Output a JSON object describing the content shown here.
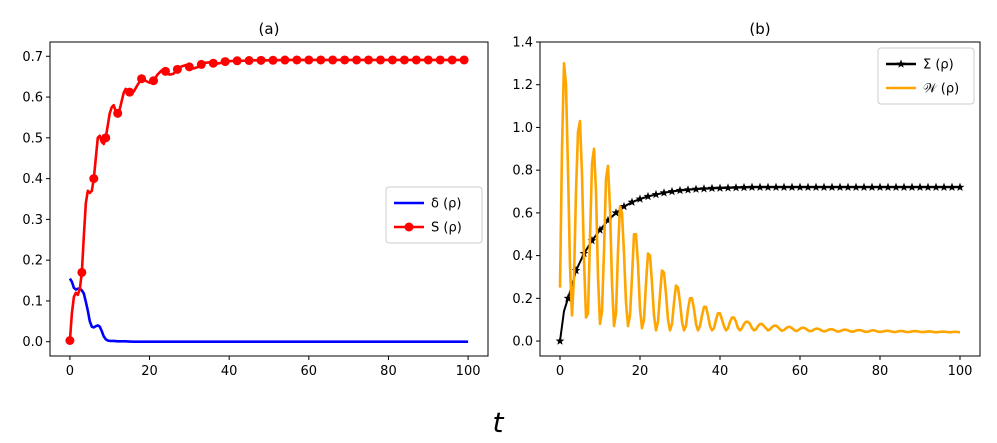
{
  "figure": {
    "xlabel": "t"
  },
  "chart_data": [
    {
      "id": "a",
      "type": "line",
      "title": "(a)",
      "xlim": [
        -5,
        105
      ],
      "ylim": [
        -0.035,
        0.735
      ],
      "xticks": [
        0,
        20,
        40,
        60,
        80,
        100
      ],
      "yticks": [
        0.0,
        0.1,
        0.2,
        0.3,
        0.4,
        0.5,
        0.6,
        0.7
      ],
      "ytick_labels": [
        "0.0",
        "0.1",
        "0.2",
        "0.3",
        "0.4",
        "0.5",
        "0.6",
        "0.7"
      ],
      "legend_position": "center-right",
      "series": [
        {
          "name": "δ (ρ)",
          "color": "#0000ff",
          "marker": "none",
          "x": [
            0,
            0.5,
            1,
            1.5,
            2,
            2.5,
            3,
            3.5,
            4,
            4.5,
            5,
            5.5,
            6,
            6.5,
            7,
            7.5,
            8,
            8.5,
            9,
            9.5,
            10,
            10.5,
            11,
            12,
            14,
            16,
            20,
            30,
            40,
            60,
            80,
            100
          ],
          "y": [
            0.155,
            0.147,
            0.132,
            0.128,
            0.13,
            0.13,
            0.126,
            0.118,
            0.098,
            0.076,
            0.05,
            0.037,
            0.035,
            0.038,
            0.04,
            0.037,
            0.026,
            0.013,
            0.006,
            0.003,
            0.002,
            0.002,
            0.002,
            0.001,
            0.001,
            0.0,
            0.0,
            0.0,
            0.0,
            0.0,
            0.0,
            0.0
          ]
        },
        {
          "name": "S (ρ)",
          "color": "#ff0000",
          "marker": "circle",
          "x": [
            0,
            0.5,
            1,
            1.5,
            2,
            2.5,
            3,
            3.5,
            4,
            4.5,
            5,
            5.5,
            6,
            6.5,
            7,
            7.5,
            8,
            8.5,
            9,
            9.5,
            10,
            10.5,
            11,
            11.5,
            12,
            12.5,
            13,
            13.5,
            14,
            15,
            16,
            17,
            18,
            19,
            20,
            21,
            22,
            23,
            24,
            25,
            26,
            27,
            28,
            29,
            30,
            31,
            32,
            33,
            34,
            35,
            36,
            37,
            38,
            39,
            40,
            42,
            44,
            46,
            48,
            50,
            55,
            60,
            65,
            70,
            75,
            80,
            85,
            90,
            95,
            100
          ],
          "y": [
            0.003,
            0.07,
            0.11,
            0.12,
            0.115,
            0.13,
            0.17,
            0.26,
            0.34,
            0.37,
            0.365,
            0.37,
            0.4,
            0.45,
            0.5,
            0.505,
            0.49,
            0.485,
            0.5,
            0.53,
            0.56,
            0.575,
            0.58,
            0.565,
            0.56,
            0.57,
            0.59,
            0.61,
            0.62,
            0.612,
            0.613,
            0.63,
            0.645,
            0.64,
            0.635,
            0.64,
            0.655,
            0.665,
            0.663,
            0.655,
            0.657,
            0.668,
            0.675,
            0.678,
            0.674,
            0.67,
            0.673,
            0.68,
            0.684,
            0.685,
            0.683,
            0.682,
            0.684,
            0.687,
            0.688,
            0.689,
            0.689,
            0.69,
            0.69,
            0.69,
            0.691,
            0.691,
            0.691,
            0.691,
            0.691,
            0.691,
            0.691,
            0.691,
            0.691,
            0.691
          ],
          "markers_x": [
            0,
            3,
            6,
            9,
            12,
            15,
            18,
            21,
            24,
            27,
            30,
            33,
            36,
            39,
            42,
            45,
            48,
            51,
            54,
            57,
            60,
            63,
            66,
            69,
            72,
            75,
            78,
            81,
            84,
            87,
            90,
            93,
            96,
            99
          ]
        }
      ]
    },
    {
      "id": "b",
      "type": "line",
      "title": "(b)",
      "xlim": [
        -5,
        105
      ],
      "ylim": [
        -0.07,
        1.4
      ],
      "xticks": [
        0,
        20,
        40,
        60,
        80,
        100
      ],
      "yticks": [
        0.0,
        0.2,
        0.4,
        0.6,
        0.8,
        1.0,
        1.2,
        1.4
      ],
      "ytick_labels": [
        "0.0",
        "0.2",
        "0.4",
        "0.6",
        "0.8",
        "1.0",
        "1.2",
        "1.4"
      ],
      "legend_position": "top-right",
      "series": [
        {
          "name": "Σ (ρ)",
          "color": "#000000",
          "marker": "star",
          "x": [
            0,
            1,
            2,
            3,
            4,
            5,
            6,
            8,
            10,
            12,
            14,
            16,
            18,
            20,
            22,
            24,
            26,
            28,
            30,
            32,
            34,
            36,
            38,
            40,
            42,
            44,
            46,
            48,
            50,
            55,
            60,
            65,
            70,
            75,
            80,
            85,
            90,
            95,
            100
          ],
          "y": [
            0.0,
            0.14,
            0.2,
            0.26,
            0.33,
            0.37,
            0.41,
            0.47,
            0.52,
            0.565,
            0.6,
            0.63,
            0.65,
            0.665,
            0.677,
            0.686,
            0.694,
            0.7,
            0.705,
            0.708,
            0.711,
            0.713,
            0.715,
            0.716,
            0.717,
            0.718,
            0.719,
            0.72,
            0.72,
            0.72,
            0.72,
            0.72,
            0.72,
            0.72,
            0.72,
            0.72,
            0.72,
            0.72,
            0.72
          ],
          "markers_x": [
            0,
            2,
            4,
            6,
            8,
            10,
            12,
            14,
            16,
            18,
            20,
            22,
            24,
            26,
            28,
            30,
            32,
            34,
            36,
            38,
            40,
            42,
            44,
            46,
            48,
            50,
            52,
            54,
            56,
            58,
            60,
            62,
            64,
            66,
            68,
            70,
            72,
            74,
            76,
            78,
            80,
            82,
            84,
            86,
            88,
            90,
            92,
            94,
            96,
            98,
            100
          ]
        },
        {
          "name": "𝒲 (ρ)",
          "color": "#ffa500",
          "marker": "none",
          "x": [
            0,
            0.5,
            1,
            1.5,
            2,
            2.5,
            3,
            3.5,
            4,
            4.5,
            5,
            5.5,
            6,
            6.5,
            7,
            7.5,
            8,
            8.5,
            9,
            9.5,
            10,
            10.5,
            11,
            11.5,
            12,
            12.5,
            13,
            13.5,
            14,
            14.5,
            15,
            15.5,
            16,
            16.5,
            17,
            17.5,
            18,
            18.5,
            19,
            19.5,
            20,
            20.5,
            21,
            21.5,
            22,
            22.5,
            23,
            23.5,
            24,
            24.5,
            25,
            25.5,
            26,
            26.5,
            27,
            27.5,
            28,
            28.5,
            29,
            29.5,
            30,
            30.5,
            31,
            31.5,
            32,
            32.5,
            33,
            33.5,
            34,
            34.5,
            35,
            35.5,
            36,
            36.5,
            37,
            37.5,
            38,
            38.5,
            39,
            39.5,
            40,
            40.5,
            41,
            41.5,
            42,
            42.5,
            43,
            43.5,
            44,
            44.5,
            45,
            45.5,
            46,
            46.5,
            47,
            47.5,
            48,
            48.5,
            49,
            49.5,
            50,
            50.5,
            51,
            51.5,
            52,
            52.5,
            53,
            53.5,
            54,
            54.5,
            55,
            55.5,
            56,
            56.5,
            57,
            57.5,
            58,
            58.5,
            59,
            59.5,
            60,
            60.5,
            61,
            61.5,
            62,
            62.5,
            63,
            63.5,
            64,
            64.5,
            65,
            65.5,
            66,
            66.5,
            67,
            67.5,
            68,
            68.5,
            69,
            69.5,
            70,
            70.5,
            71,
            71.5,
            72,
            72.5,
            73,
            73.5,
            74,
            74.5,
            75,
            75.5,
            76,
            76.5,
            77,
            77.5,
            78,
            78.5,
            79,
            79.5,
            80,
            80.5,
            81,
            81.5,
            82,
            82.5,
            83,
            83.5,
            84,
            84.5,
            85,
            85.5,
            86,
            86.5,
            87,
            87.5,
            88,
            88.5,
            89,
            89.5,
            90,
            90.5,
            91,
            91.5,
            92,
            92.5,
            93,
            93.5,
            94,
            94.5,
            95,
            95.5,
            96,
            96.5,
            97,
            97.5,
            98,
            98.5,
            99,
            99.5,
            100
          ],
          "y": [
            0.25,
            0.9,
            1.3,
            1.2,
            0.8,
            0.35,
            0.12,
            0.3,
            0.7,
            0.98,
            1.03,
            0.78,
            0.38,
            0.11,
            0.13,
            0.48,
            0.83,
            0.9,
            0.7,
            0.3,
            0.08,
            0.14,
            0.42,
            0.76,
            0.82,
            0.62,
            0.27,
            0.07,
            0.13,
            0.42,
            0.63,
            0.6,
            0.41,
            0.18,
            0.07,
            0.12,
            0.3,
            0.5,
            0.5,
            0.36,
            0.15,
            0.06,
            0.1,
            0.27,
            0.41,
            0.4,
            0.27,
            0.12,
            0.05,
            0.09,
            0.22,
            0.33,
            0.32,
            0.22,
            0.1,
            0.05,
            0.08,
            0.18,
            0.26,
            0.25,
            0.18,
            0.09,
            0.05,
            0.07,
            0.15,
            0.2,
            0.2,
            0.15,
            0.08,
            0.05,
            0.07,
            0.12,
            0.16,
            0.16,
            0.12,
            0.07,
            0.05,
            0.06,
            0.1,
            0.13,
            0.13,
            0.1,
            0.07,
            0.05,
            0.06,
            0.09,
            0.11,
            0.11,
            0.09,
            0.06,
            0.05,
            0.06,
            0.08,
            0.09,
            0.09,
            0.08,
            0.06,
            0.05,
            0.055,
            0.07,
            0.08,
            0.08,
            0.07,
            0.06,
            0.05,
            0.055,
            0.065,
            0.072,
            0.072,
            0.065,
            0.055,
            0.048,
            0.052,
            0.06,
            0.066,
            0.066,
            0.06,
            0.052,
            0.047,
            0.05,
            0.057,
            0.062,
            0.062,
            0.057,
            0.05,
            0.046,
            0.048,
            0.054,
            0.058,
            0.058,
            0.054,
            0.048,
            0.045,
            0.047,
            0.052,
            0.055,
            0.055,
            0.052,
            0.047,
            0.044,
            0.046,
            0.05,
            0.053,
            0.053,
            0.05,
            0.046,
            0.044,
            0.045,
            0.049,
            0.051,
            0.051,
            0.049,
            0.045,
            0.043,
            0.044,
            0.047,
            0.05,
            0.05,
            0.047,
            0.044,
            0.043,
            0.044,
            0.046,
            0.048,
            0.048,
            0.046,
            0.044,
            0.042,
            0.043,
            0.045,
            0.047,
            0.047,
            0.045,
            0.043,
            0.042,
            0.043,
            0.045,
            0.046,
            0.046,
            0.045,
            0.043,
            0.042,
            0.042,
            0.044,
            0.045,
            0.045,
            0.044,
            0.042,
            0.041,
            0.042,
            0.043,
            0.044,
            0.044,
            0.043,
            0.042,
            0.041,
            0.042,
            0.043,
            0.043,
            0.042,
            0.041
          ]
        }
      ]
    }
  ]
}
